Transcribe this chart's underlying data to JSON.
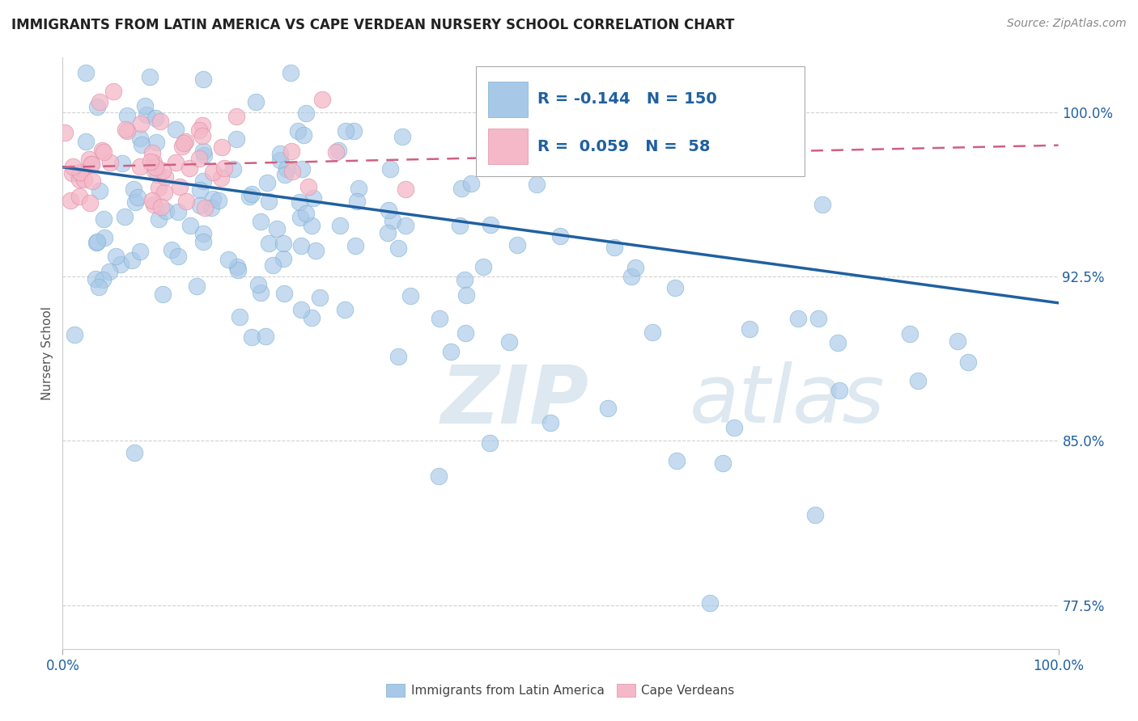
{
  "title": "IMMIGRANTS FROM LATIN AMERICA VS CAPE VERDEAN NURSERY SCHOOL CORRELATION CHART",
  "source_text": "Source: ZipAtlas.com",
  "ylabel": "Nursery School",
  "xlim": [
    0.0,
    1.0
  ],
  "ylim": [
    0.755,
    1.025
  ],
  "yticks": [
    0.775,
    0.85,
    0.925,
    1.0
  ],
  "ytick_labels": [
    "77.5%",
    "85.0%",
    "92.5%",
    "100.0%"
  ],
  "xtick_labels": [
    "0.0%",
    "100.0%"
  ],
  "blue_R": "-0.144",
  "blue_N": "150",
  "pink_R": "0.059",
  "pink_N": "58",
  "blue_color": "#a8c8e8",
  "blue_edge_color": "#7aafd0",
  "blue_line_color": "#2060a0",
  "pink_color": "#f4b8c8",
  "pink_edge_color": "#e090a8",
  "pink_line_color": "#d06080",
  "grid_color": "#cccccc",
  "watermark_zip": "ZIP",
  "watermark_atlas": "atlas",
  "watermark_color": "#dde8f0",
  "title_color": "#222222",
  "axis_label_color": "#555555",
  "tick_label_color": "#2060a0",
  "legend_label_blue": "Immigrants from Latin America",
  "legend_label_pink": "Cape Verdeans"
}
